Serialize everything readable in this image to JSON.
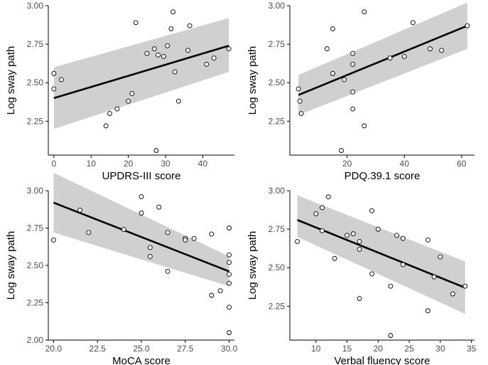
{
  "figure": {
    "colors": {
      "band": "#d0d0d0",
      "line": "#000000",
      "axis": "#000000",
      "point_stroke": "#000000",
      "point_fill": "#ffffff",
      "tick_text": "#4d4d4d"
    }
  },
  "chart_data": [
    {
      "type": "scatter",
      "xlabel": "UPDRS-III score",
      "ylabel": "Log sway path",
      "xlim": [
        -1.5,
        48.5
      ],
      "ylim": [
        2.03,
        3.0
      ],
      "xticks": [
        0,
        10,
        20,
        30,
        40
      ],
      "xtick_labels": [
        "0",
        "10",
        "20",
        "30",
        "40"
      ],
      "yticks": [
        2.25,
        2.5,
        2.75,
        3.0
      ],
      "ytick_labels": [
        "2.25",
        "2.50",
        "2.75",
        "3.00"
      ],
      "grid": false,
      "points": [
        [
          0,
          2.56
        ],
        [
          0,
          2.46
        ],
        [
          2,
          2.52
        ],
        [
          14,
          2.22
        ],
        [
          15,
          2.3
        ],
        [
          17,
          2.33
        ],
        [
          20,
          2.38
        ],
        [
          21,
          2.43
        ],
        [
          22,
          2.89
        ],
        [
          25,
          2.69
        ],
        [
          27,
          2.72
        ],
        [
          27.5,
          2.06
        ],
        [
          28,
          2.68
        ],
        [
          29.5,
          2.67
        ],
        [
          30.5,
          2.74
        ],
        [
          31.5,
          2.85
        ],
        [
          32,
          2.96
        ],
        [
          32.5,
          2.57
        ],
        [
          33.5,
          2.38
        ],
        [
          36,
          2.71
        ],
        [
          36.5,
          2.87
        ],
        [
          41,
          2.62
        ],
        [
          43,
          2.66
        ],
        [
          47,
          2.72
        ]
      ],
      "fit": {
        "x": [
          0,
          47
        ],
        "y": [
          2.4,
          2.74
        ]
      },
      "band": {
        "x": [
          0,
          47
        ],
        "lower": [
          2.2,
          2.57
        ],
        "upper": [
          2.6,
          2.92
        ]
      }
    },
    {
      "type": "scatter",
      "xlabel": "PDQ.39.1 score",
      "ylabel": "Log sway path",
      "xlim": [
        0,
        64.5
      ],
      "ylim": [
        2.03,
        3.0
      ],
      "xticks": [
        20,
        40,
        60
      ],
      "xtick_labels": [
        "20",
        "40",
        "60"
      ],
      "yticks": [
        2.25,
        2.5,
        2.75,
        3.0
      ],
      "ytick_labels": [
        "2.25",
        "2.50",
        "2.75",
        "3.00"
      ],
      "grid": false,
      "points": [
        [
          3,
          2.46
        ],
        [
          3.5,
          2.38
        ],
        [
          4,
          2.3
        ],
        [
          13,
          2.72
        ],
        [
          15,
          2.85
        ],
        [
          15,
          2.56
        ],
        [
          18,
          2.06
        ],
        [
          19,
          2.52
        ],
        [
          22,
          2.69
        ],
        [
          22,
          2.62
        ],
        [
          22,
          2.44
        ],
        [
          22,
          2.33
        ],
        [
          26,
          2.96
        ],
        [
          26,
          2.22
        ],
        [
          35,
          2.66
        ],
        [
          40,
          2.67
        ],
        [
          43,
          2.89
        ],
        [
          49,
          2.72
        ],
        [
          53,
          2.71
        ],
        [
          62,
          2.87
        ]
      ],
      "fit": {
        "x": [
          3,
          62
        ],
        "y": [
          2.42,
          2.87
        ]
      },
      "band": {
        "x": [
          3,
          62
        ],
        "lower": [
          2.29,
          2.72
        ],
        "upper": [
          2.55,
          3.02
        ]
      }
    },
    {
      "type": "scatter",
      "xlabel": "MoCA score",
      "ylabel": "Log sway path",
      "xlim": [
        19.7,
        30.3
      ],
      "ylim": [
        2.0,
        3.0
      ],
      "xticks": [
        20.0,
        22.5,
        25.0,
        27.5,
        30.0
      ],
      "xtick_labels": [
        "20.0",
        "22.5",
        "25.0",
        "27.5",
        "30.0"
      ],
      "yticks": [
        2.0,
        2.25,
        2.5,
        2.75,
        3.0
      ],
      "ytick_labels": [
        "2.00",
        "2.25",
        "2.50",
        "2.75",
        "3.00"
      ],
      "grid": false,
      "points": [
        [
          20,
          2.67
        ],
        [
          21.5,
          2.87
        ],
        [
          22,
          2.72
        ],
        [
          24,
          2.74
        ],
        [
          25,
          2.96
        ],
        [
          25,
          2.85
        ],
        [
          25.5,
          2.62
        ],
        [
          25.5,
          2.56
        ],
        [
          26,
          2.89
        ],
        [
          26.5,
          2.72
        ],
        [
          26.5,
          2.46
        ],
        [
          27.5,
          2.68
        ],
        [
          27.5,
          2.67
        ],
        [
          28,
          2.68
        ],
        [
          29,
          2.71
        ],
        [
          29,
          2.3
        ],
        [
          29.5,
          2.33
        ],
        [
          30,
          2.75
        ],
        [
          30,
          2.57
        ],
        [
          30,
          2.52
        ],
        [
          30,
          2.44
        ],
        [
          30,
          2.38
        ],
        [
          30,
          2.22
        ],
        [
          30,
          2.05
        ]
      ],
      "fit": {
        "x": [
          20,
          30
        ],
        "y": [
          2.92,
          2.46
        ]
      },
      "band": {
        "x": [
          20,
          30
        ],
        "lower": [
          2.72,
          2.36
        ],
        "upper": [
          3.12,
          2.56
        ]
      }
    },
    {
      "type": "scatter",
      "xlabel": "Verbal fluency score",
      "ylabel": "Log sway path",
      "xlim": [
        5.8,
        35.5
      ],
      "ylim": [
        2.03,
        3.0
      ],
      "xticks": [
        10,
        15,
        20,
        25,
        30,
        35
      ],
      "xtick_labels": [
        "10",
        "15",
        "20",
        "25",
        "30",
        "35"
      ],
      "yticks": [
        2.25,
        2.5,
        2.75,
        3.0
      ],
      "ytick_labels": [
        "2.25",
        "2.50",
        "2.75",
        "3.00"
      ],
      "grid": false,
      "points": [
        [
          7,
          2.67
        ],
        [
          10,
          2.85
        ],
        [
          11,
          2.89
        ],
        [
          11,
          2.74
        ],
        [
          12,
          2.96
        ],
        [
          13,
          2.56
        ],
        [
          15,
          2.71
        ],
        [
          16,
          2.72
        ],
        [
          17,
          2.67
        ],
        [
          17,
          2.62
        ],
        [
          17,
          2.3
        ],
        [
          19,
          2.87
        ],
        [
          19,
          2.46
        ],
        [
          20,
          2.75
        ],
        [
          22,
          2.38
        ],
        [
          22,
          2.06
        ],
        [
          23,
          2.71
        ],
        [
          24,
          2.52
        ],
        [
          24,
          2.69
        ],
        [
          28,
          2.68
        ],
        [
          28,
          2.22
        ],
        [
          29,
          2.44
        ],
        [
          30,
          2.57
        ],
        [
          32,
          2.33
        ],
        [
          34,
          2.38
        ]
      ],
      "fit": {
        "x": [
          7,
          34
        ],
        "y": [
          2.81,
          2.37
        ]
      },
      "band": {
        "x": [
          7,
          34
        ],
        "lower": [
          2.7,
          2.2
        ],
        "upper": [
          2.97,
          2.54
        ]
      }
    }
  ]
}
